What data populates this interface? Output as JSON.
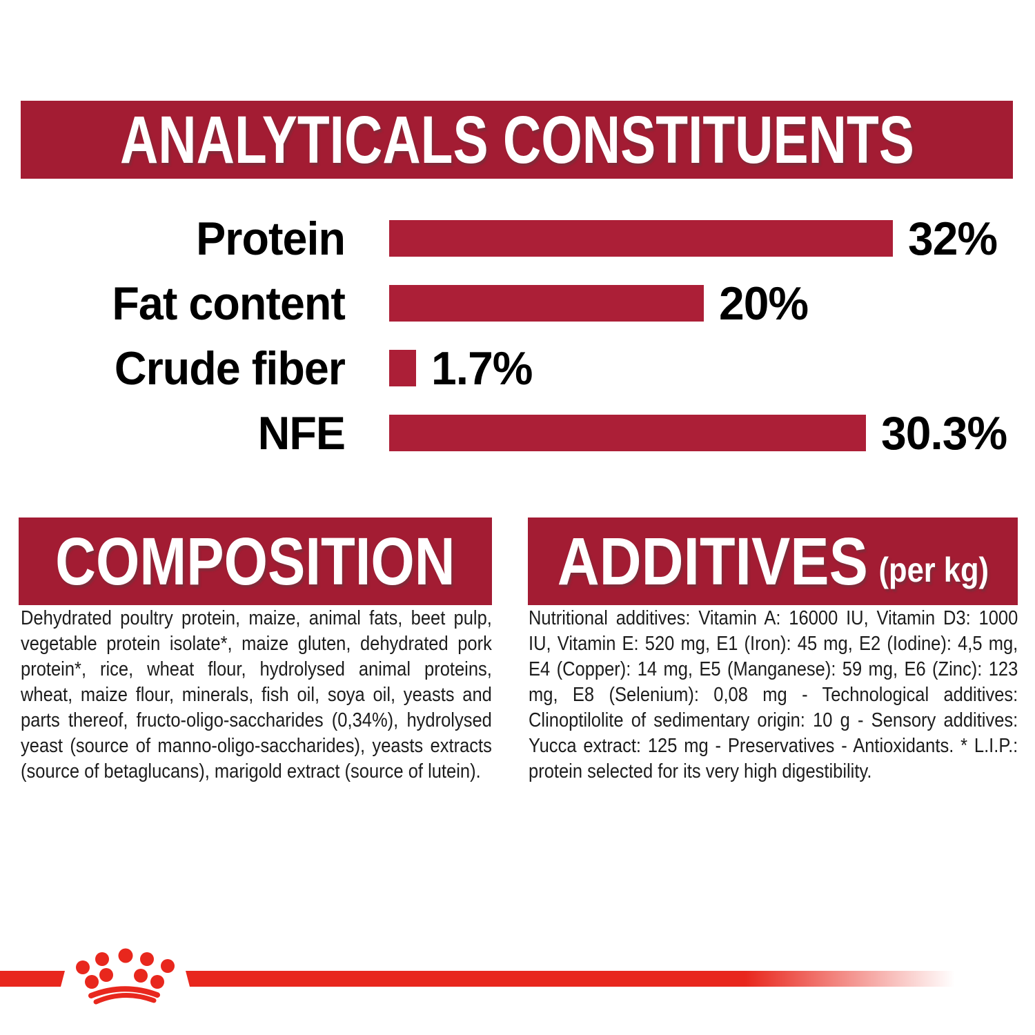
{
  "colors": {
    "crimson": "#A31C33",
    "bar_red": "#AC1F37",
    "bright_red": "#E8271D",
    "text": "#1C1C1C",
    "background": "#FFFFFF"
  },
  "header": {
    "title": "ANALYTICALS CONSTITUENTS"
  },
  "chart_data": {
    "type": "bar",
    "orientation": "horizontal",
    "title": "ANALYTICALS CONSTITUENTS",
    "categories": [
      "Protein",
      "Fat content",
      "Crude fiber",
      "NFE"
    ],
    "values": [
      32,
      20,
      1.7,
      30.3
    ],
    "value_labels": [
      "32%",
      "20%",
      "1.7%",
      "30.3%"
    ],
    "unit": "%",
    "xlim": [
      0,
      32
    ],
    "bar_color": "#AC1F37",
    "grid": false,
    "value_label_position": "right-of-bar"
  },
  "composition": {
    "title": "COMPOSITION",
    "body": "Dehydrated poultry protein, maize, animal fats, beet pulp, vegetable protein isolate*, maize gluten, dehydrated pork protein*, rice, wheat flour, hydrolysed animal proteins, wheat, maize flour, minerals, fish oil, soya oil, yeasts and parts thereof, fructo-oligo-saccharides (0,34%), hydrolysed yeast (source of manno-oligo-saccharides), yeasts extracts (source of betaglucans), marigold extract (source of lutein)."
  },
  "additives": {
    "title": "ADDITIVES",
    "title_suffix": "(per kg)",
    "body": "Nutritional additives: Vitamin A: 16000 IU, Vitamin D3: 1000 IU, Vitamin E: 520 mg, E1 (Iron): 45 mg, E2 (Iodine): 4,5 mg, E4 (Copper): 14 mg, E5 (Manganese): 59 mg, E6 (Zinc): 123 mg, E8 (Selenium): 0,08 mg - Technological additives: Clinoptilolite of sedimentary origin: 10 g - Sensory additives: Yucca extract: 125 mg - Preservatives - Antioxidants. * L.I.P.: protein selected for its very high digestibility."
  },
  "footer": {
    "logo": "royal-canin-crown"
  }
}
